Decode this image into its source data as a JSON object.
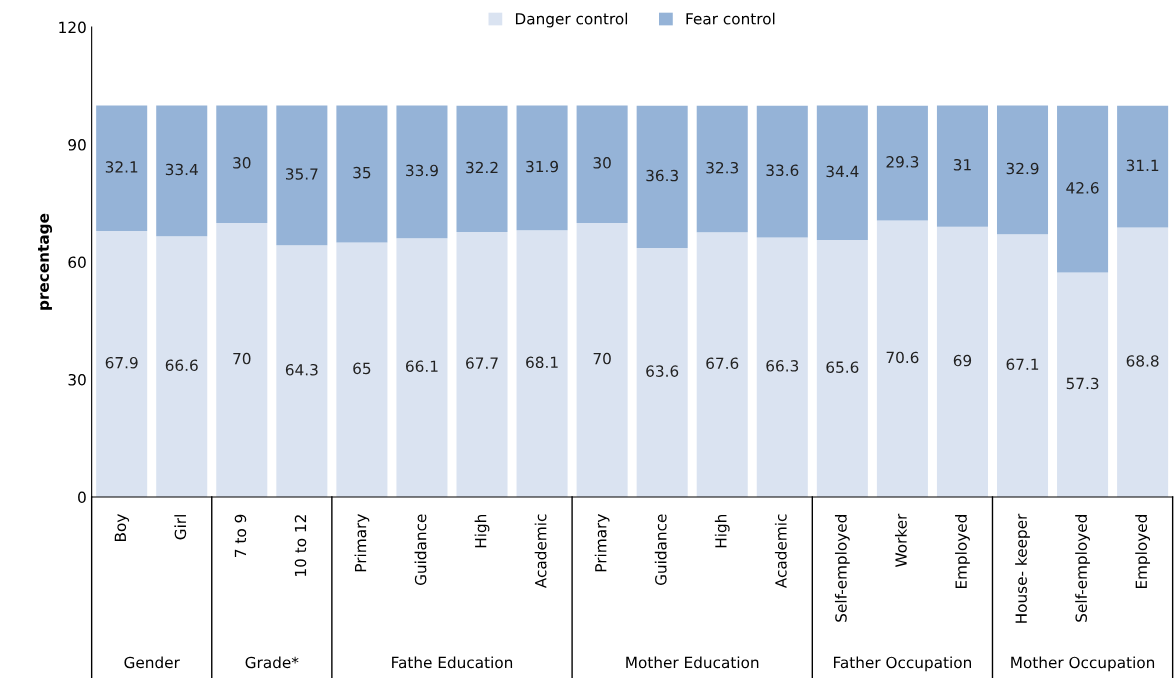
{
  "chart_data": {
    "type": "bar",
    "stacked": true,
    "ylabel": "precentage",
    "categories": [
      "Boy",
      "Girl",
      "7 to 9",
      "10 to 12",
      "Primary",
      "Guidance",
      "High",
      "Academic",
      "Primary",
      "Guidance",
      "High",
      "Academic",
      "Self-employed",
      "Worker",
      "Employed",
      "House- keeper",
      "Self-employed",
      "Employed"
    ],
    "series": [
      {
        "name": "Danger control",
        "color": "#dae3f1",
        "values": [
          67.9,
          66.6,
          70,
          64.3,
          65,
          66.1,
          67.7,
          68.1,
          70,
          63.6,
          67.6,
          66.3,
          65.6,
          70.6,
          69,
          67.1,
          57.3,
          68.8
        ]
      },
      {
        "name": "Fear control",
        "color": "#95b3d7",
        "values": [
          32.1,
          33.4,
          30,
          35.7,
          35,
          33.9,
          32.2,
          31.9,
          30,
          36.3,
          32.3,
          33.6,
          34.4,
          29.3,
          31,
          32.9,
          42.6,
          31.1
        ]
      }
    ],
    "ylim": [
      0,
      120
    ],
    "yticks": [
      0,
      30,
      60,
      90,
      120
    ],
    "grid": false,
    "legend": "top",
    "data_labels": true,
    "annotations": [
      "Gender",
      "Grade*",
      "Fathe Education",
      "Mother Education",
      "Father Occupation",
      "Mother Occupation"
    ]
  }
}
